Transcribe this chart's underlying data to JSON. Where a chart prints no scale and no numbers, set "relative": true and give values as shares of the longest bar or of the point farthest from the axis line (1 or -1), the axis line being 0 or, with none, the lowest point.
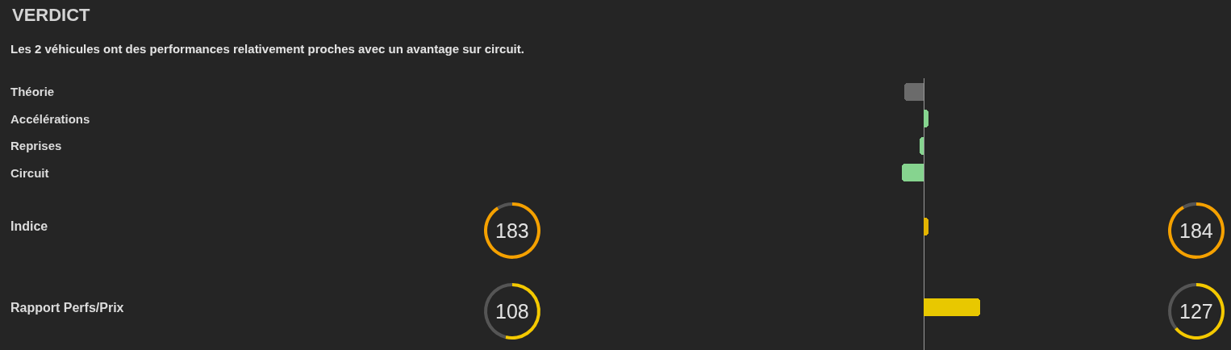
{
  "chart_data": [
    {
      "type": "bar",
      "orientation": "horizontal",
      "relative": true,
      "title": "VERDICT",
      "subtitle": "Les 2 véhicules ont des performances relativement proches avec un avantage sur circuit.",
      "categories": [
        "Théorie",
        "Accélérations",
        "Reprises",
        "Circuit",
        null,
        "Indice",
        null,
        null,
        "Rapport Perfs/Prix"
      ],
      "values": [
        -0.35,
        0.09,
        -0.07,
        -0.38,
        null,
        0.08,
        null,
        null,
        1
      ],
      "colors": [
        "#6b6b6b",
        "#86d48f",
        "#86d48f",
        "#86d48f",
        null,
        "#e3b400",
        null,
        null,
        "#e8c800"
      ]
    },
    {
      "type": "donut",
      "annotations": [
        "183"
      ],
      "categories": [
        null,
        null
      ],
      "values": [
        91,
        9
      ],
      "colors": [
        "#f5a100",
        "#555555"
      ]
    },
    {
      "type": "donut",
      "annotations": [
        "184"
      ],
      "categories": [
        null,
        null
      ],
      "values": [
        92,
        8
      ],
      "colors": [
        "#f5a100",
        "#555555"
      ]
    },
    {
      "type": "donut",
      "annotations": [
        "108"
      ],
      "categories": [
        null,
        null
      ],
      "values": [
        54,
        46
      ],
      "colors": [
        "#f4c900",
        "#555555"
      ]
    },
    {
      "type": "donut",
      "annotations": [
        "127"
      ],
      "categories": [
        null,
        null
      ],
      "values": [
        64,
        36
      ],
      "colors": [
        "#f4c900",
        "#555555"
      ]
    }
  ]
}
